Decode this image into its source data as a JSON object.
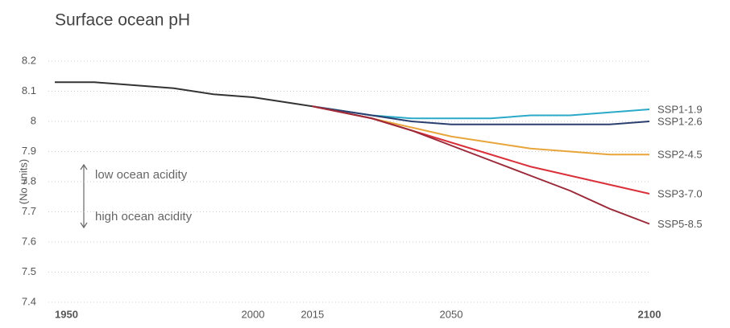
{
  "chart_data": {
    "type": "line",
    "title": "Surface ocean pH",
    "y_label": "(No units)",
    "annotations": [
      "low ocean acidity",
      "high ocean acidity"
    ],
    "x": [
      1950,
      1960,
      1970,
      1980,
      1990,
      2000,
      2010,
      2015,
      2030,
      2040,
      2050,
      2060,
      2070,
      2080,
      2090,
      2100
    ],
    "series": [
      {
        "color": "#333333",
        "values": [
          8.13,
          8.13,
          8.12,
          8.11,
          8.09,
          8.08,
          8.06,
          8.05,
          null,
          null,
          null,
          null,
          null,
          null,
          null,
          null
        ]
      },
      {
        "name": "SSP1-1.9",
        "color": "#2aa9c8",
        "values": [
          null,
          null,
          null,
          null,
          null,
          null,
          null,
          8.05,
          8.02,
          8.01,
          8.01,
          8.01,
          8.02,
          8.02,
          8.03,
          8.04
        ]
      },
      {
        "name": "SSP1-2.6",
        "color": "#2b3f6e",
        "values": [
          null,
          null,
          null,
          null,
          null,
          null,
          null,
          8.05,
          8.02,
          8.0,
          7.99,
          7.99,
          7.99,
          7.99,
          7.99,
          8.0
        ]
      },
      {
        "name": "SSP2-4.5",
        "color": "#e8a53c",
        "values": [
          null,
          null,
          null,
          null,
          null,
          null,
          null,
          8.05,
          8.01,
          7.98,
          7.95,
          7.93,
          7.91,
          7.9,
          7.89,
          7.89
        ]
      },
      {
        "name": "SSP3-7.0",
        "color": "#d9303a",
        "values": [
          null,
          null,
          null,
          null,
          null,
          null,
          null,
          8.05,
          8.01,
          7.97,
          7.93,
          7.89,
          7.85,
          7.82,
          7.79,
          7.76
        ]
      },
      {
        "name": "SSP5-8.5",
        "color": "#9b2a3a",
        "values": [
          null,
          null,
          null,
          null,
          null,
          null,
          null,
          8.05,
          8.01,
          7.97,
          7.92,
          7.87,
          7.82,
          7.77,
          7.71,
          7.66
        ]
      }
    ],
    "xlim": [
      1950,
      2100
    ],
    "xticks": [
      1950,
      2000,
      2015,
      2050,
      2100
    ],
    "ylim": [
      7.4,
      8.2
    ],
    "yticks": [
      7.4,
      7.5,
      7.6,
      7.7,
      7.8,
      7.9,
      8.0,
      8.1,
      8.2
    ],
    "grid": true
  }
}
